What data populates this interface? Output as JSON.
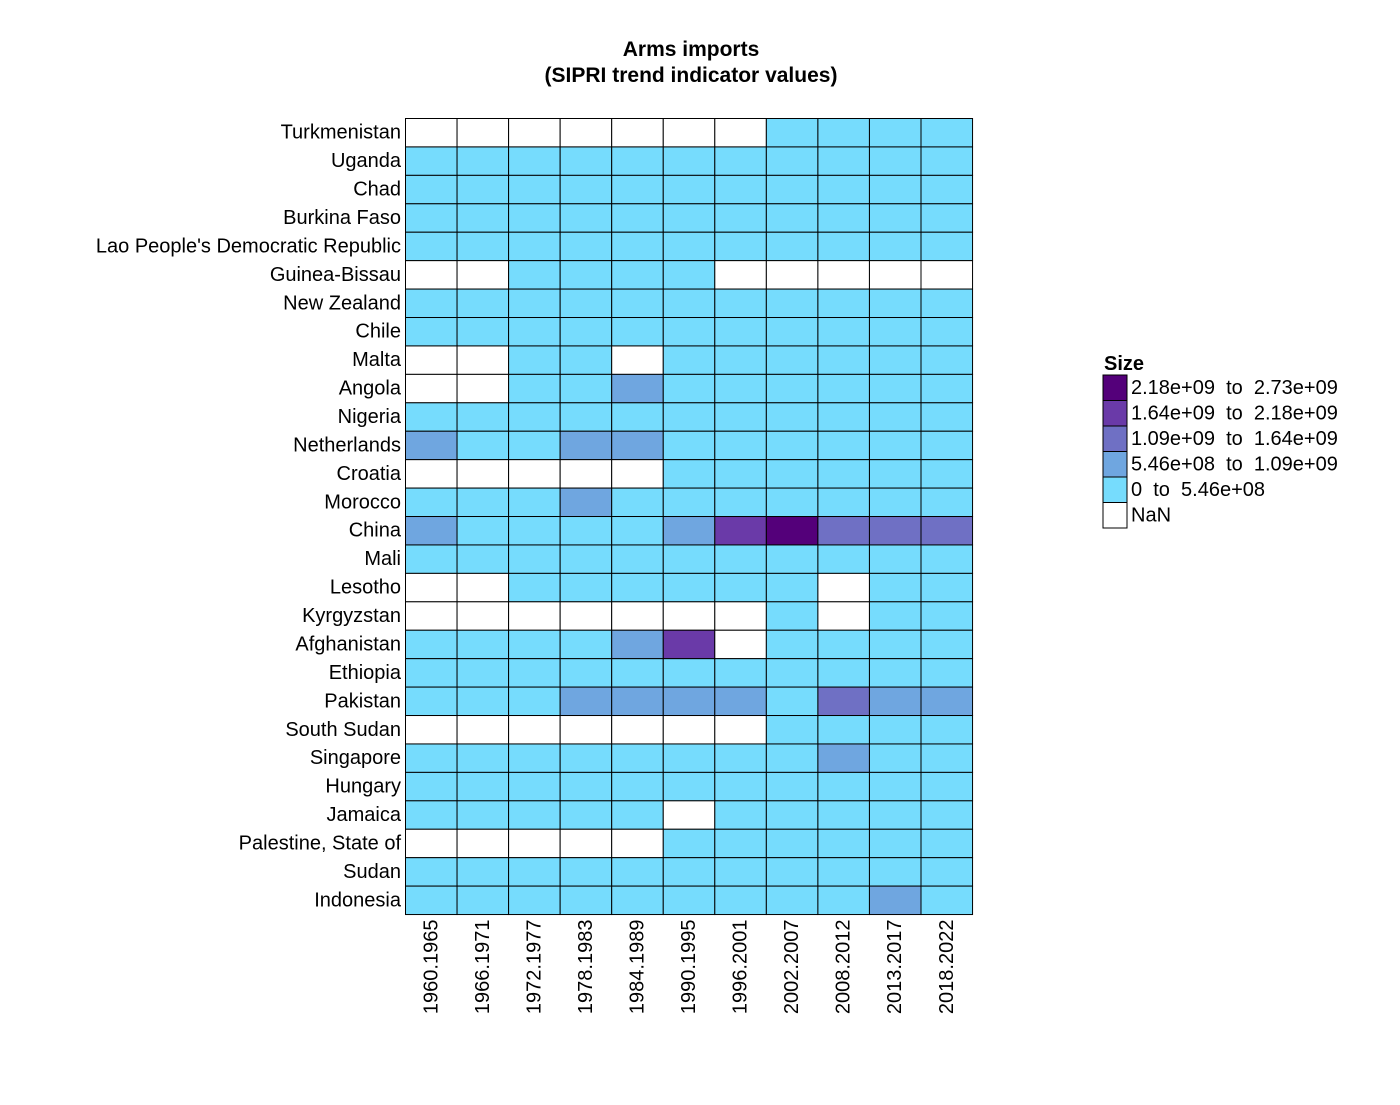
{
  "chart_data": {
    "type": "heatmap",
    "title": "Arms imports",
    "subtitle": "(SIPRI trend indicator values)",
    "columns": [
      "1960.1965",
      "1966.1971",
      "1972.1977",
      "1978.1983",
      "1984.1989",
      "1990.1995",
      "1996.2001",
      "2002.2007",
      "2008.2012",
      "2013.2017",
      "2018.2022"
    ],
    "rows": [
      "Turkmenistan",
      "Uganda",
      "Chad",
      "Burkina Faso",
      "Lao People's Democratic Republic",
      "Guinea-Bissau",
      "New Zealand",
      "Chile",
      "Malta",
      "Angola",
      "Nigeria",
      "Netherlands",
      "Croatia",
      "Morocco",
      "China",
      "Mali",
      "Lesotho",
      "Kyrgyzstan",
      "Afghanistan",
      "Ethiopia",
      "Pakistan",
      "South Sudan",
      "Singapore",
      "Hungary",
      "Jamaica",
      "Palestine, State of",
      "Sudan",
      "Indonesia"
    ],
    "bin_cells": [
      [
        -1,
        -1,
        -1,
        -1,
        -1,
        -1,
        -1,
        0,
        0,
        0,
        0
      ],
      [
        0,
        0,
        0,
        0,
        0,
        0,
        0,
        0,
        0,
        0,
        0
      ],
      [
        0,
        0,
        0,
        0,
        0,
        0,
        0,
        0,
        0,
        0,
        0
      ],
      [
        0,
        0,
        0,
        0,
        0,
        0,
        0,
        0,
        0,
        0,
        0
      ],
      [
        0,
        0,
        0,
        0,
        0,
        0,
        0,
        0,
        0,
        0,
        0
      ],
      [
        -1,
        -1,
        0,
        0,
        0,
        0,
        -1,
        -1,
        -1,
        -1,
        -1
      ],
      [
        0,
        0,
        0,
        0,
        0,
        0,
        0,
        0,
        0,
        0,
        0
      ],
      [
        0,
        0,
        0,
        0,
        0,
        0,
        0,
        0,
        0,
        0,
        0
      ],
      [
        -1,
        -1,
        0,
        0,
        -1,
        0,
        0,
        0,
        0,
        0,
        0
      ],
      [
        -1,
        -1,
        0,
        0,
        1,
        0,
        0,
        0,
        0,
        0,
        0
      ],
      [
        0,
        0,
        0,
        0,
        0,
        0,
        0,
        0,
        0,
        0,
        0
      ],
      [
        1,
        0,
        0,
        1,
        1,
        0,
        0,
        0,
        0,
        0,
        0
      ],
      [
        -1,
        -1,
        -1,
        -1,
        -1,
        0,
        0,
        0,
        0,
        0,
        0
      ],
      [
        0,
        0,
        0,
        1,
        0,
        0,
        0,
        0,
        0,
        0,
        0
      ],
      [
        1,
        0,
        0,
        0,
        0,
        1,
        3,
        4,
        2,
        2,
        2
      ],
      [
        0,
        0,
        0,
        0,
        0,
        0,
        0,
        0,
        0,
        0,
        0
      ],
      [
        -1,
        -1,
        0,
        0,
        0,
        0,
        0,
        0,
        -1,
        0,
        0
      ],
      [
        -1,
        -1,
        -1,
        -1,
        -1,
        -1,
        -1,
        0,
        -1,
        0,
        0
      ],
      [
        0,
        0,
        0,
        0,
        1,
        3,
        -1,
        0,
        0,
        0,
        0
      ],
      [
        0,
        0,
        0,
        0,
        0,
        0,
        0,
        0,
        0,
        0,
        0
      ],
      [
        0,
        0,
        0,
        1,
        1,
        1,
        1,
        0,
        2,
        1,
        1
      ],
      [
        -1,
        -1,
        -1,
        -1,
        -1,
        -1,
        -1,
        0,
        0,
        0,
        0
      ],
      [
        0,
        0,
        0,
        0,
        0,
        0,
        0,
        0,
        1,
        0,
        0
      ],
      [
        0,
        0,
        0,
        0,
        0,
        0,
        0,
        0,
        0,
        0,
        0
      ],
      [
        0,
        0,
        0,
        0,
        0,
        -1,
        0,
        0,
        0,
        0,
        0
      ],
      [
        -1,
        -1,
        -1,
        -1,
        -1,
        0,
        0,
        0,
        0,
        0,
        0
      ],
      [
        0,
        0,
        0,
        0,
        0,
        0,
        0,
        0,
        0,
        0,
        0
      ],
      [
        0,
        0,
        0,
        0,
        0,
        0,
        0,
        0,
        0,
        1,
        0
      ]
    ],
    "legend": {
      "title": "Size",
      "placement": "right",
      "bins": [
        {
          "from": "2.18e+09",
          "to": "2.73e+09",
          "color": "#54007a"
        },
        {
          "from": "1.64e+09",
          "to": "2.18e+09",
          "color": "#6a3aa8"
        },
        {
          "from": "1.09e+09",
          "to": "1.64e+09",
          "color": "#6f70c4"
        },
        {
          "from": "5.46e+08",
          "to": "1.09e+09",
          "color": "#6fa6e0"
        },
        {
          "from": "0",
          "to": "5.46e+08",
          "color": "#76dcfd"
        }
      ],
      "to_word": "to",
      "nan_label": "NaN",
      "nan_color": "#ffffff"
    },
    "grid": false
  }
}
